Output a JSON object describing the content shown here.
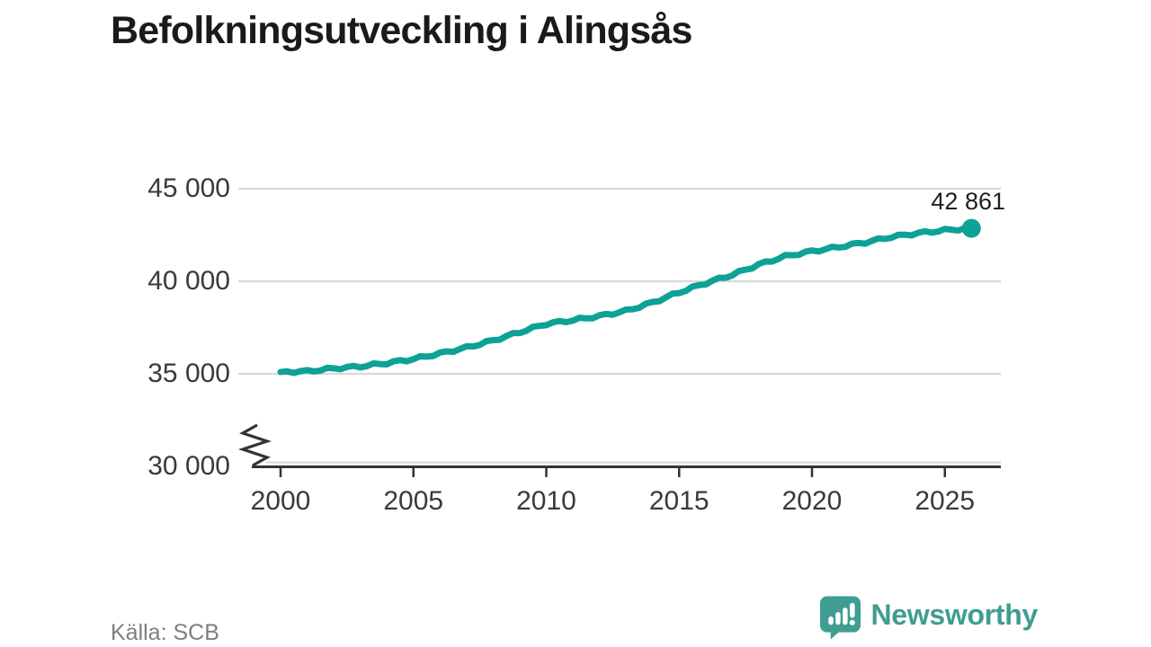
{
  "title": "Befolkningsutveckling i Alingsås",
  "source": "Källa: SCB",
  "logo": {
    "text": "Newsworthy",
    "color": "#3f9d92"
  },
  "chart_data": {
    "type": "line",
    "title": "Befolkningsutveckling i Alingsås",
    "xlabel": "",
    "ylabel": "",
    "x": [
      2000,
      2001,
      2002,
      2003,
      2004,
      2005,
      2006,
      2007,
      2008,
      2009,
      2010,
      2011,
      2012,
      2013,
      2014,
      2015,
      2016,
      2017,
      2018,
      2019,
      2020,
      2021,
      2022,
      2023,
      2024,
      2025,
      2026
    ],
    "values": [
      35100,
      35140,
      35290,
      35400,
      35580,
      35800,
      36100,
      36420,
      36800,
      37250,
      37700,
      37900,
      38120,
      38400,
      38850,
      39400,
      39900,
      40350,
      40900,
      41350,
      41620,
      41850,
      42100,
      42400,
      42600,
      42760,
      42861
    ],
    "end_label": "42 861",
    "end_value": 42861,
    "xticks": [
      2000,
      2005,
      2010,
      2015,
      2020,
      2025
    ],
    "xtick_labels": [
      "2000",
      "2005",
      "2010",
      "2015",
      "2020",
      "2025"
    ],
    "yticks": [
      30000,
      35000,
      40000,
      45000
    ],
    "ytick_labels": [
      "30 000",
      "35 000",
      "40 000",
      "45 000"
    ],
    "xlim": [
      2000,
      2027.1
    ],
    "ylim": [
      30000,
      45000
    ],
    "axis_break": true,
    "grid": "horizontal",
    "line_color": "#0ca295",
    "grid_color": "#d9d9d9",
    "axis_color": "#333333"
  }
}
